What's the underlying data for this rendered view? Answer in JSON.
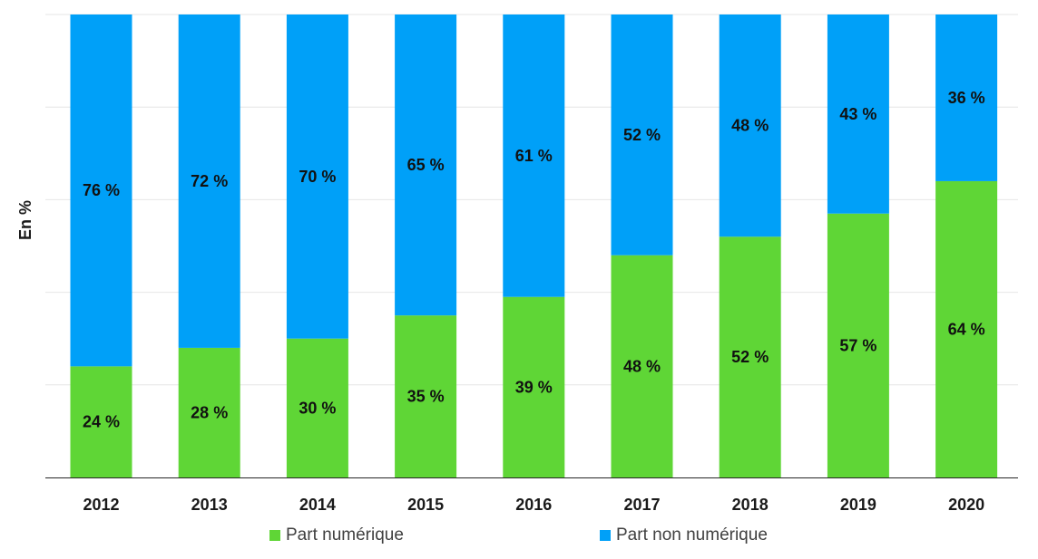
{
  "chart_data": {
    "type": "bar",
    "stacked": true,
    "normalized": true,
    "categories": [
      "2012",
      "2013",
      "2014",
      "2015",
      "2016",
      "2017",
      "2018",
      "2019",
      "2020"
    ],
    "series": [
      {
        "name": "Part numérique",
        "color": "#5fd636",
        "values": [
          24,
          28,
          30,
          35,
          39,
          48,
          52,
          57,
          64
        ],
        "labels": [
          "24 %",
          "28 %",
          "30 %",
          "35 %",
          "39 %",
          "48 %",
          "52 %",
          "57 %",
          "64 %"
        ]
      },
      {
        "name": "Part non numérique",
        "color": "#00a0f8",
        "values": [
          76,
          72,
          70,
          65,
          61,
          52,
          48,
          43,
          36
        ],
        "labels": [
          "76 %",
          "72 %",
          "70 %",
          "65 %",
          "61 %",
          "52 %",
          "48 %",
          "43 %",
          "36 %"
        ]
      }
    ],
    "ylabel": "En %",
    "xlabel": "",
    "ylim": [
      0,
      100
    ],
    "grid": true,
    "legend_position": "bottom"
  }
}
